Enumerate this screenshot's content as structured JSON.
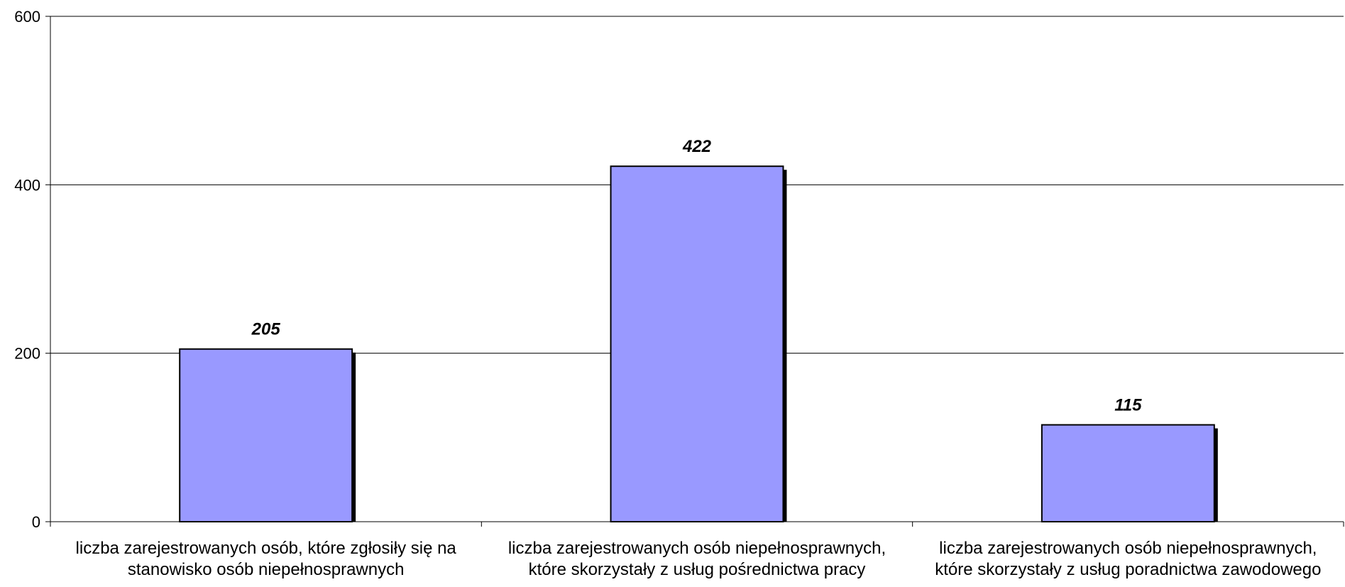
{
  "chart_data": {
    "type": "bar",
    "title": "",
    "xlabel": "",
    "ylabel": "",
    "ylim": [
      0,
      600
    ],
    "yticks": [
      0,
      200,
      400,
      600
    ],
    "grid": true,
    "legend": "none",
    "bar_color": "#9999ff",
    "bar_border_color": "#000000",
    "shadow_color": "#000000",
    "categories": [
      [
        "liczba zarejestrowanych osób, które zgłosiły się na",
        "stanowisko osób niepełnosprawnych"
      ],
      [
        "liczba zarejestrowanych osób niepełnosprawnych,",
        "które skorzystały z usług pośrednictwa pracy"
      ],
      [
        "liczba zarejestrowanych osób niepełnosprawnych,",
        "które skorzystały z usług poradnictwa zawodowego"
      ]
    ],
    "values": [
      205,
      422,
      115
    ],
    "data_labels": [
      "205",
      "422",
      "115"
    ]
  }
}
